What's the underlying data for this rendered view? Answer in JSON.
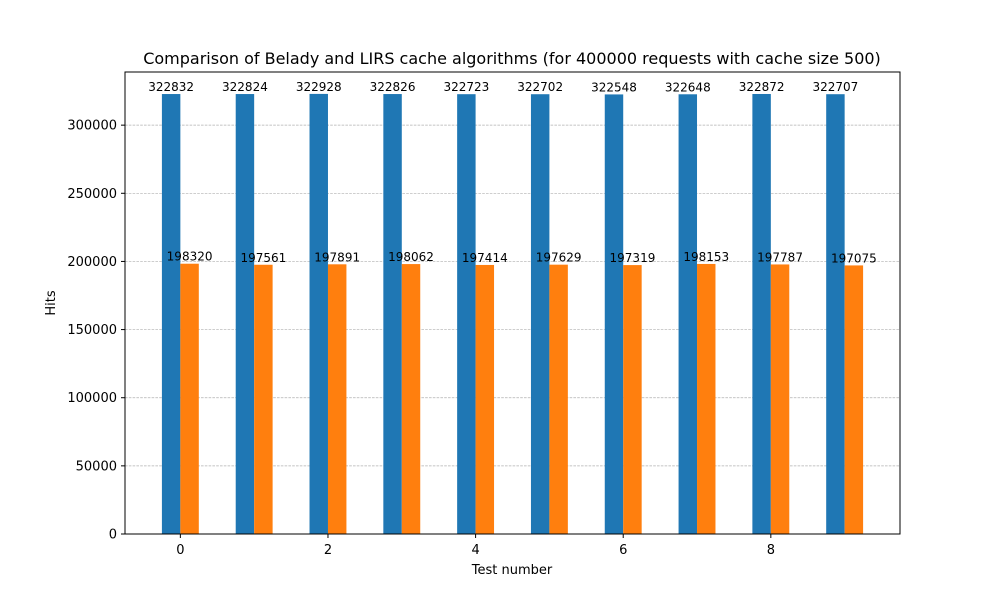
{
  "chart_data": {
    "type": "bar",
    "title": "Comparison of Belady and LIRS cache algorithms (for 400000 requests with cache size 500)",
    "xlabel": "Test number",
    "ylabel": "Hits",
    "x": [
      0,
      1,
      2,
      3,
      4,
      5,
      6,
      7,
      8,
      9
    ],
    "xticks": [
      0,
      2,
      4,
      6,
      8
    ],
    "yticks": [
      0,
      50000,
      100000,
      150000,
      200000,
      250000,
      300000
    ],
    "xlim": [
      -0.75,
      9.75
    ],
    "ylim": [
      0,
      339000
    ],
    "grid": "y-dashed",
    "series": [
      {
        "color": "#1f77b4",
        "values": [
          322832,
          322824,
          322928,
          322826,
          322723,
          322702,
          322548,
          322648,
          322872,
          322707
        ]
      },
      {
        "color": "#ff7f0e",
        "values": [
          198320,
          197561,
          197891,
          198062,
          197414,
          197629,
          197319,
          198153,
          197787,
          197075
        ]
      }
    ]
  }
}
